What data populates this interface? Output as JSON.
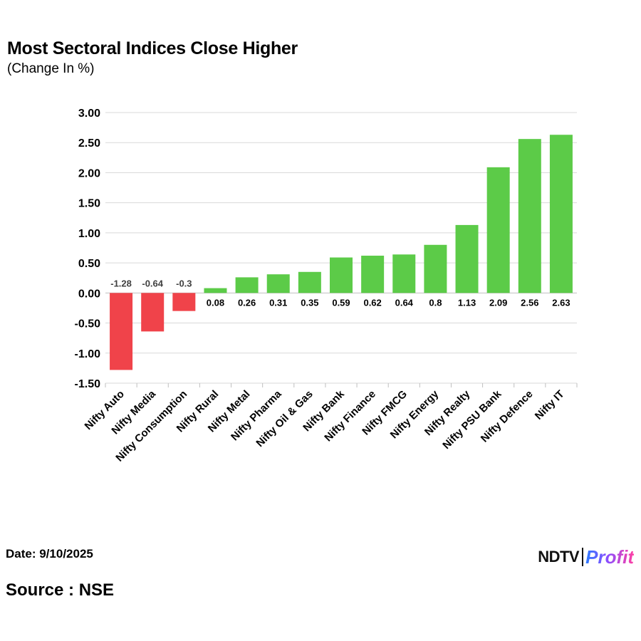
{
  "header": {
    "title": "Most Sectoral Indices Close Higher",
    "subtitle": "(Change In %)"
  },
  "footer": {
    "date": "Date: 9/10/2025",
    "source": "Source : NSE",
    "brand_ndtv": "NDTV",
    "brand_profit": "Profit",
    "brand_icon": "ndtv-profit-logo"
  },
  "colors": {
    "positive": "#5ccb48",
    "negative": "#f0434a",
    "grid": "#d9d9d9"
  },
  "chart_data": {
    "type": "bar",
    "title": "Most Sectoral Indices Close Higher",
    "subtitle": "(Change In %)",
    "xlabel": "",
    "ylabel": "",
    "ylim": [
      -1.5,
      3.0
    ],
    "yticks": [
      "3.00",
      "2.50",
      "2.00",
      "1.50",
      "1.00",
      "0.50",
      "0.00",
      "-0.50",
      "-1.00",
      "-1.50"
    ],
    "grid": true,
    "legend": "none",
    "categories": [
      "Nifty Auto",
      "Nifty Media",
      "Nifty Consumption",
      "Nifty Rural",
      "Nifty Metal",
      "Nifty Pharma",
      "Nifty Oil & Gas",
      "Nifty Bank",
      "Nifty Finance",
      "Nifty FMCG",
      "Nifty Energy",
      "Nifty Realty",
      "Nifty PSU Bank",
      "Nifty Defence",
      "Nifty IT"
    ],
    "values": [
      -1.28,
      -0.64,
      -0.3,
      0.08,
      0.26,
      0.31,
      0.35,
      0.59,
      0.62,
      0.64,
      0.8,
      1.13,
      2.09,
      2.56,
      2.63
    ],
    "data_labels": [
      "-1.28",
      "-0.64",
      "-0.3",
      "0.08",
      "0.26",
      "0.31",
      "0.35",
      "0.59",
      "0.62",
      "0.64",
      "0.8",
      "1.13",
      "2.09",
      "2.56",
      "2.63"
    ]
  }
}
